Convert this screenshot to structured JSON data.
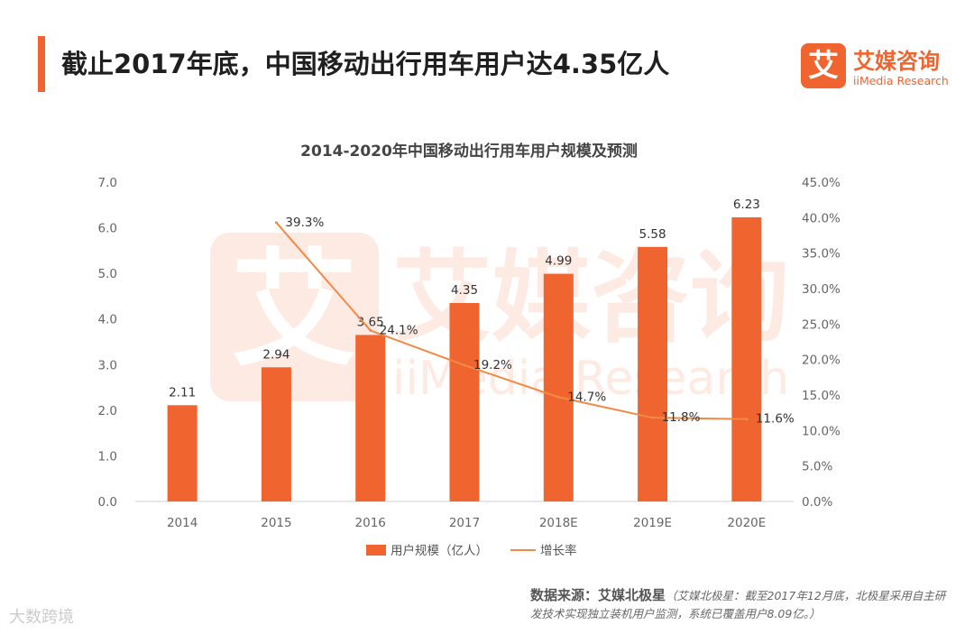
{
  "header": {
    "title": "截止2017年底，中国移动出行用车用户达4.35亿人",
    "logo_char": "艾",
    "logo_cn": "艾媒咨询",
    "logo_en": "iiMedia Research"
  },
  "watermark": {
    "cn": "艾媒咨询",
    "en": "iiMedia Research",
    "char": "艾"
  },
  "colors": {
    "accent": "#f0642f",
    "bar": "#f0642f",
    "line": "#f08a45"
  },
  "chart_data": {
    "type": "bar",
    "title": "2014-2020年中国移动出行用车用户规模及预测",
    "categories": [
      "2014",
      "2015",
      "2016",
      "2017",
      "2018E",
      "2019E",
      "2020E"
    ],
    "series": [
      {
        "name": "用户规模（亿人）",
        "type": "bar",
        "axis": "left",
        "values": [
          2.11,
          2.94,
          3.65,
          4.35,
          4.99,
          5.58,
          6.23
        ],
        "labels": [
          "2.11",
          "2.94",
          "3.65",
          "4.35",
          "4.99",
          "5.58",
          "6.23"
        ]
      },
      {
        "name": "增长率",
        "type": "line",
        "axis": "right",
        "values": [
          null,
          39.3,
          24.1,
          19.2,
          14.7,
          11.8,
          11.6
        ],
        "labels": [
          "",
          "39.3%",
          "24.1%",
          "19.2%",
          "14.7%",
          "11.8%",
          "11.6%"
        ]
      }
    ],
    "y_left": {
      "range": [
        0,
        7
      ],
      "ticks": [
        "0.0",
        "1.0",
        "2.0",
        "3.0",
        "4.0",
        "5.0",
        "6.0",
        "7.0"
      ]
    },
    "y_right": {
      "range": [
        0,
        45
      ],
      "ticks": [
        "0.0%",
        "5.0%",
        "10.0%",
        "15.0%",
        "20.0%",
        "25.0%",
        "30.0%",
        "35.0%",
        "40.0%",
        "45.0%"
      ]
    },
    "legend_position": "bottom-center",
    "grid": false
  },
  "source": {
    "label": "数据来源：艾媒北极星",
    "note": "（艾媒北极星：截至2017年12月底，北极星采用自主研发技术实现独立装机用户监测，系统已覆盖用户8.09亿。）"
  },
  "corner_watermark": "大数跨境"
}
